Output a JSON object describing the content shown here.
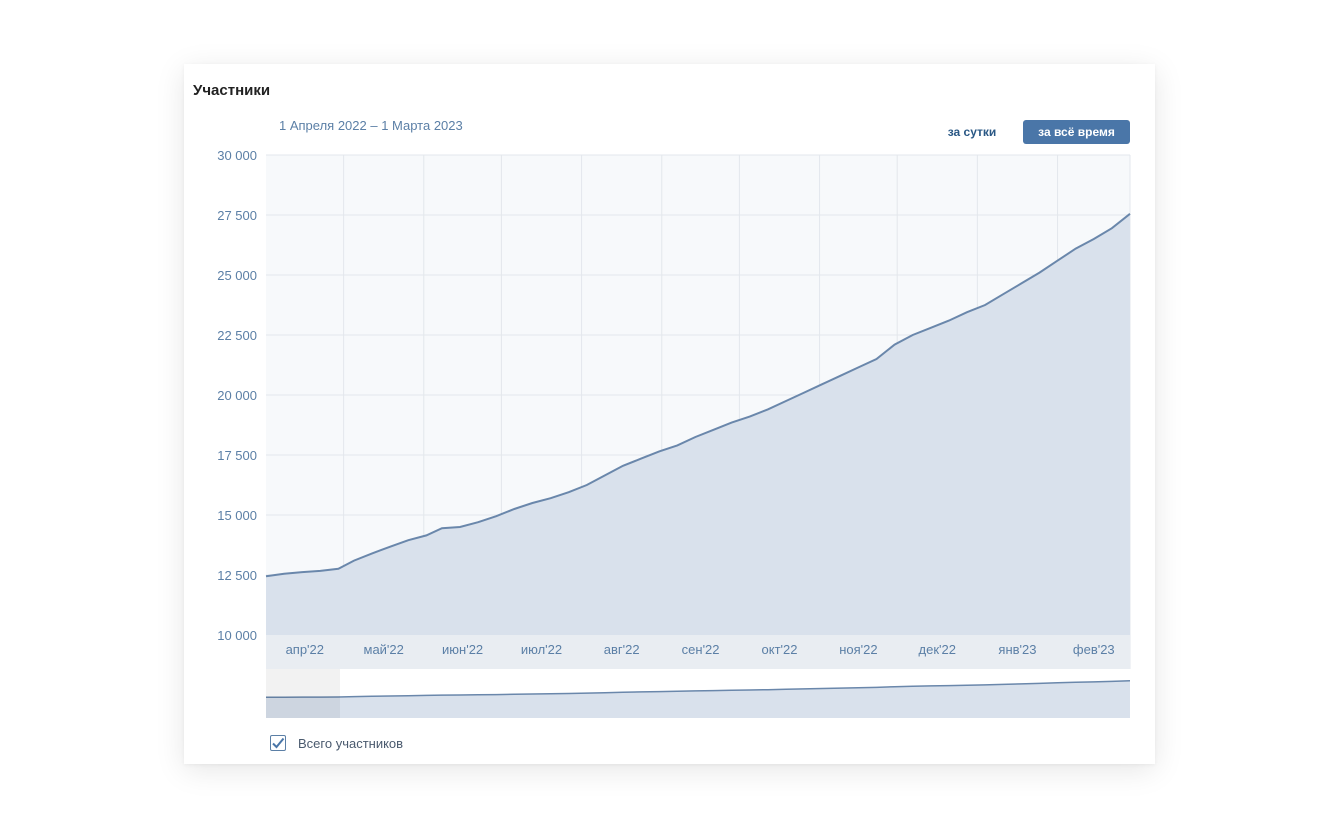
{
  "title": "Участники",
  "date_range": "1 Апреля 2022 – 1 Марта 2023",
  "buttons": {
    "day": "за сутки",
    "all_time": "за всё время"
  },
  "legend": {
    "label": "Всего участников",
    "checked": true
  },
  "colors": {
    "line": "#6a87ab",
    "area": "#d9e1ec",
    "plot_bg": "#f7f9fb",
    "grid": "#e3e7ec",
    "axis_text": "#5b7fa6",
    "active_button": "#4a76a8"
  },
  "icons": {
    "legend_checkbox": "checkbox-checked-icon"
  },
  "chart_data": {
    "type": "area",
    "ylim": [
      10000,
      30000
    ],
    "yticks": [
      {
        "value": 30000,
        "label": "30 000"
      },
      {
        "value": 27500,
        "label": "27 500"
      },
      {
        "value": 25000,
        "label": "25 000"
      },
      {
        "value": 22500,
        "label": "22 500"
      },
      {
        "value": 20000,
        "label": "20 000"
      },
      {
        "value": 17500,
        "label": "17 500"
      },
      {
        "value": 15000,
        "label": "15 000"
      },
      {
        "value": 12500,
        "label": "12 500"
      },
      {
        "value": 10000,
        "label": "10 000"
      }
    ],
    "xlim": [
      "2022-04-01",
      "2023-03-01"
    ],
    "months": [
      {
        "label": "апр'22",
        "start": "2022-04-01"
      },
      {
        "label": "май'22",
        "start": "2022-05-01"
      },
      {
        "label": "июн'22",
        "start": "2022-06-01"
      },
      {
        "label": "июл'22",
        "start": "2022-07-01"
      },
      {
        "label": "авг'22",
        "start": "2022-08-01"
      },
      {
        "label": "сен'22",
        "start": "2022-09-01"
      },
      {
        "label": "окт'22",
        "start": "2022-10-01"
      },
      {
        "label": "ноя'22",
        "start": "2022-11-01"
      },
      {
        "label": "дек'22",
        "start": "2022-12-01"
      },
      {
        "label": "янв'23",
        "start": "2023-01-01"
      },
      {
        "label": "фев'23",
        "start": "2023-02-01"
      }
    ],
    "series": [
      {
        "points": [
          [
            "2022-04-01",
            12450
          ],
          [
            "2022-04-08",
            12550
          ],
          [
            "2022-04-15",
            12620
          ],
          [
            "2022-04-22",
            12670
          ],
          [
            "2022-04-29",
            12760
          ],
          [
            "2022-05-05",
            13100
          ],
          [
            "2022-05-12",
            13400
          ],
          [
            "2022-05-19",
            13680
          ],
          [
            "2022-05-26",
            13950
          ],
          [
            "2022-06-02",
            14150
          ],
          [
            "2022-06-08",
            14450
          ],
          [
            "2022-06-15",
            14500
          ],
          [
            "2022-06-22",
            14700
          ],
          [
            "2022-06-29",
            14950
          ],
          [
            "2022-07-06",
            15250
          ],
          [
            "2022-07-13",
            15500
          ],
          [
            "2022-07-20",
            15700
          ],
          [
            "2022-07-27",
            15950
          ],
          [
            "2022-08-03",
            16250
          ],
          [
            "2022-08-10",
            16650
          ],
          [
            "2022-08-17",
            17050
          ],
          [
            "2022-08-24",
            17350
          ],
          [
            "2022-08-31",
            17650
          ],
          [
            "2022-09-07",
            17900
          ],
          [
            "2022-09-14",
            18250
          ],
          [
            "2022-09-21",
            18550
          ],
          [
            "2022-09-28",
            18850
          ],
          [
            "2022-10-05",
            19100
          ],
          [
            "2022-10-12",
            19400
          ],
          [
            "2022-10-19",
            19750
          ],
          [
            "2022-10-26",
            20100
          ],
          [
            "2022-11-02",
            20450
          ],
          [
            "2022-11-09",
            20800
          ],
          [
            "2022-11-16",
            21150
          ],
          [
            "2022-11-23",
            21500
          ],
          [
            "2022-11-30",
            22100
          ],
          [
            "2022-12-07",
            22500
          ],
          [
            "2022-12-14",
            22800
          ],
          [
            "2022-12-21",
            23100
          ],
          [
            "2022-12-28",
            23450
          ],
          [
            "2023-01-04",
            23750
          ],
          [
            "2023-01-11",
            24200
          ],
          [
            "2023-01-18",
            24650
          ],
          [
            "2023-01-25",
            25100
          ],
          [
            "2023-02-01",
            25600
          ],
          [
            "2023-02-08",
            26100
          ],
          [
            "2023-02-15",
            26500
          ],
          [
            "2023-02-22",
            26950
          ],
          [
            "2023-03-01",
            27550
          ]
        ]
      }
    ],
    "grid": true,
    "legend_position": "bottom-left",
    "navigator": true
  }
}
